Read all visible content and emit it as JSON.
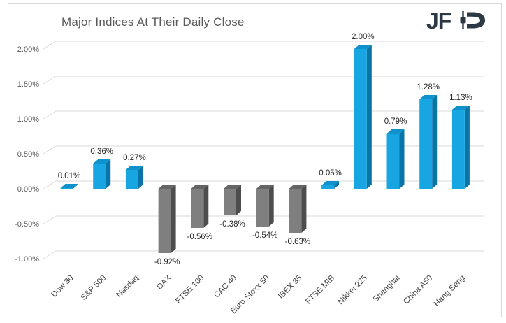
{
  "header": {
    "logo_text": "JFD"
  },
  "chart_data": {
    "type": "bar",
    "title": "Major Indices At Their Daily Close",
    "categories": [
      "Dow 30",
      "S&P 500",
      "Nasdaq",
      "DAX",
      "FTSE 100",
      "CAC 40",
      "Euro Stoxx 50",
      "IBEX 35",
      "FTSE MIB",
      "Nikkei 225",
      "Shanghai",
      "China A50",
      "Hang Seng"
    ],
    "values": [
      0.01,
      0.36,
      0.27,
      -0.92,
      -0.56,
      -0.38,
      -0.54,
      -0.63,
      0.05,
      2.0,
      0.79,
      1.28,
      1.13
    ],
    "labels": [
      "0.01%",
      "0.36%",
      "0.27%",
      "-0.92%",
      "-0.56%",
      "-0.38%",
      "-0.54%",
      "-0.63%",
      "0.05%",
      "2.00%",
      "0.79%",
      "1.28%",
      "1.13%"
    ],
    "yticks": [
      "2.00%",
      "1.50%",
      "1.00%",
      "0.50%",
      "0.00%",
      "-0.50%",
      "-1.00%"
    ],
    "ytick_values": [
      2.0,
      1.5,
      1.0,
      0.5,
      0.0,
      -0.5,
      -1.0
    ],
    "ylim": [
      -1.0,
      2.0
    ],
    "unit": "%",
    "grid": "on",
    "legend": "none",
    "style": "3d-bars",
    "colors": {
      "positive_front": "#18a6e3",
      "positive_side": "#0b74a6",
      "positive_top": "#0f92cc",
      "negative_front": "#7f7f7f",
      "negative_side": "#4d4d4d",
      "negative_top": "#656565",
      "gridline": "#d9d9d9",
      "data_label": "#262626",
      "axis_label": "#595959",
      "category_label": "#404040",
      "title": "#595959",
      "logo": "#2c3945",
      "frame_border": "#d9d9d9",
      "background": "#ffffff"
    }
  }
}
